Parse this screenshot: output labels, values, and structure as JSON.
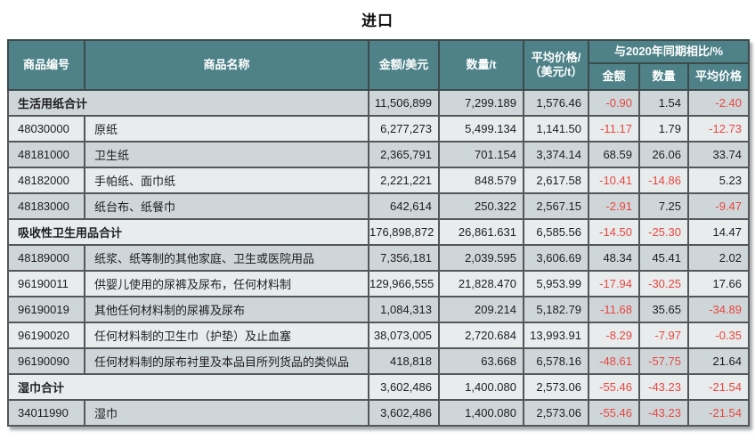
{
  "title": "进口",
  "colors": {
    "header_bg": "#4e8288",
    "row_dark": "#cfd6d9",
    "row_light": "#e8eced",
    "negative": "#e8463f",
    "header_text": "#ffffff",
    "body_text": "#1d1d1f"
  },
  "table": {
    "header": {
      "code": "商品编号",
      "name": "商品名称",
      "amount": "金额/美元",
      "quantity": "数量/t",
      "avg_price_line1": "平均价格/",
      "avg_price_line2": "（美元/t）",
      "yoy_group": "与2020年同期相比/%",
      "yoy_amount": "金额",
      "yoy_quantity": "数量",
      "yoy_avg_price": "平均价格"
    },
    "rows": [
      {
        "type": "section",
        "code": "",
        "name": "生活用纸合计",
        "amount": "11,506,899",
        "quantity": "7,299.189",
        "avg_price": "1,576.46",
        "chg_amount": "-0.90",
        "chg_quantity": "1.54",
        "chg_avg_price": "-2.40"
      },
      {
        "type": "item",
        "code": "48030000",
        "name": "原纸",
        "amount": "6,277,273",
        "quantity": "5,499.134",
        "avg_price": "1,141.50",
        "chg_amount": "-11.17",
        "chg_quantity": "1.79",
        "chg_avg_price": "-12.73"
      },
      {
        "type": "item",
        "code": "48181000",
        "name": "卫生纸",
        "amount": "2,365,791",
        "quantity": "701.154",
        "avg_price": "3,374.14",
        "chg_amount": "68.59",
        "chg_quantity": "26.06",
        "chg_avg_price": "33.74"
      },
      {
        "type": "item",
        "code": "48182000",
        "name": "手帕纸、面巾纸",
        "amount": "2,221,221",
        "quantity": "848.579",
        "avg_price": "2,617.58",
        "chg_amount": "-10.41",
        "chg_quantity": "-14.86",
        "chg_avg_price": "5.23"
      },
      {
        "type": "item",
        "code": "48183000",
        "name": "纸台布、纸餐巾",
        "amount": "642,614",
        "quantity": "250.322",
        "avg_price": "2,567.15",
        "chg_amount": "-2.91",
        "chg_quantity": "7.25",
        "chg_avg_price": "-9.47"
      },
      {
        "type": "section",
        "code": "",
        "name": "吸收性卫生用品合计",
        "amount": "176,898,872",
        "quantity": "26,861.631",
        "avg_price": "6,585.56",
        "chg_amount": "-14.50",
        "chg_quantity": "-25.30",
        "chg_avg_price": "14.47"
      },
      {
        "type": "item",
        "code": "48189000",
        "name": "纸浆、纸等制的其他家庭、卫生或医院用品",
        "amount": "7,356,181",
        "quantity": "2,039.595",
        "avg_price": "3,606.69",
        "chg_amount": "48.34",
        "chg_quantity": "45.41",
        "chg_avg_price": "2.02"
      },
      {
        "type": "item",
        "code": "96190011",
        "name": "供婴儿使用的尿裤及尿布，任何材料制",
        "amount": "129,966,555",
        "quantity": "21,828.470",
        "avg_price": "5,953.99",
        "chg_amount": "-17.94",
        "chg_quantity": "-30.25",
        "chg_avg_price": "17.66"
      },
      {
        "type": "item",
        "code": "96190019",
        "name": "其他任何材料制的尿裤及尿布",
        "amount": "1,084,313",
        "quantity": "209.214",
        "avg_price": "5,182.79",
        "chg_amount": "-11.68",
        "chg_quantity": "35.65",
        "chg_avg_price": "-34.89"
      },
      {
        "type": "item",
        "code": "96190020",
        "name": "任何材料制的卫生巾（护垫）及止血塞",
        "amount": "38,073,005",
        "quantity": "2,720.684",
        "avg_price": "13,993.91",
        "chg_amount": "-8.29",
        "chg_quantity": "-7.97",
        "chg_avg_price": "-0.35"
      },
      {
        "type": "item",
        "code": "96190090",
        "name": "任何材料制的尿布衬里及本品目所列货品的类似品",
        "amount": "418,818",
        "quantity": "63.668",
        "avg_price": "6,578.16",
        "chg_amount": "-48.61",
        "chg_quantity": "-57.75",
        "chg_avg_price": "21.64"
      },
      {
        "type": "section",
        "code": "",
        "name": "湿巾合计",
        "amount": "3,602,486",
        "quantity": "1,400.080",
        "avg_price": "2,573.06",
        "chg_amount": "-55.46",
        "chg_quantity": "-43.23",
        "chg_avg_price": "-21.54"
      },
      {
        "type": "item",
        "code": "34011990",
        "name": "湿巾",
        "amount": "3,602,486",
        "quantity": "1,400.080",
        "avg_price": "2,573.06",
        "chg_amount": "-55.46",
        "chg_quantity": "-43.23",
        "chg_avg_price": "-21.54"
      }
    ]
  }
}
